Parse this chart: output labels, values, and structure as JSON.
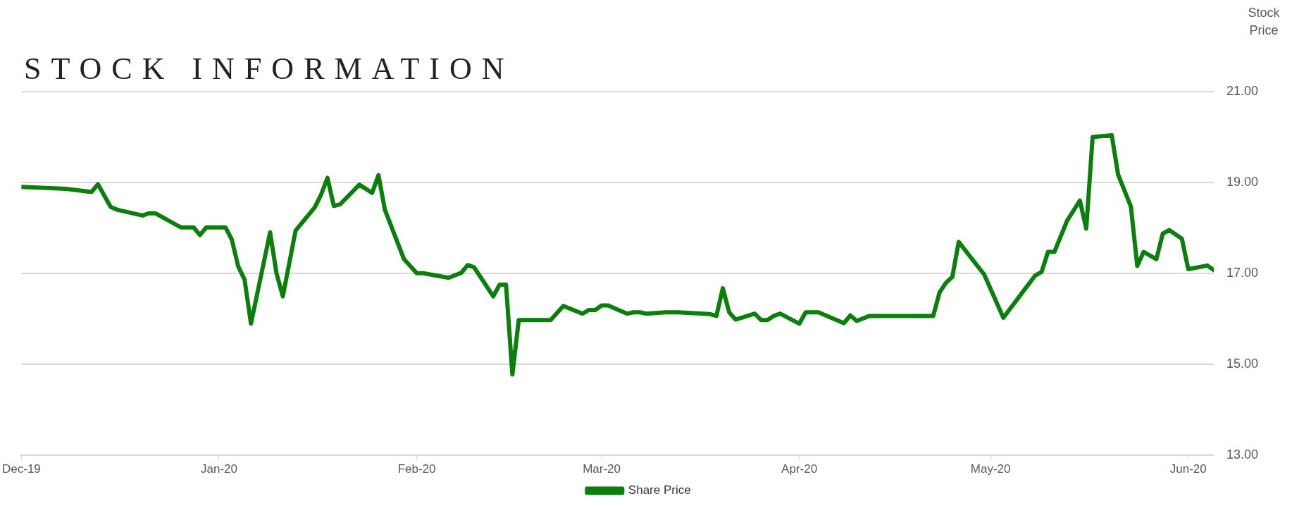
{
  "chart_data": {
    "type": "line",
    "title": "STOCK INFORMATION",
    "ylabel": "Stock Price",
    "x": [
      "2019-12-01",
      "2019-12-08",
      "2019-12-12",
      "2019-12-13",
      "2019-12-15",
      "2019-12-16",
      "2019-12-20",
      "2019-12-21",
      "2019-12-22",
      "2019-12-26",
      "2019-12-28",
      "2019-12-29",
      "2019-12-30",
      "2020-01-02",
      "2020-01-03",
      "2020-01-04",
      "2020-01-05",
      "2020-01-06",
      "2020-01-09",
      "2020-01-10",
      "2020-01-11",
      "2020-01-13",
      "2020-01-16",
      "2020-01-17",
      "2020-01-18",
      "2020-01-19",
      "2020-01-20",
      "2020-01-23",
      "2020-01-25",
      "2020-01-26",
      "2020-01-27",
      "2020-01-30",
      "2020-02-01",
      "2020-02-02",
      "2020-02-06",
      "2020-02-08",
      "2020-02-09",
      "2020-02-10",
      "2020-02-13",
      "2020-02-14",
      "2020-02-15",
      "2020-02-16",
      "2020-02-17",
      "2020-02-22",
      "2020-02-24",
      "2020-02-27",
      "2020-02-28",
      "2020-02-29",
      "2020-03-01",
      "2020-03-02",
      "2020-03-05",
      "2020-03-06",
      "2020-03-07",
      "2020-03-08",
      "2020-03-11",
      "2020-03-13",
      "2020-03-18",
      "2020-03-19",
      "2020-03-20",
      "2020-03-21",
      "2020-03-22",
      "2020-03-25",
      "2020-03-26",
      "2020-03-27",
      "2020-03-28",
      "2020-03-29",
      "2020-04-01",
      "2020-04-02",
      "2020-04-04",
      "2020-04-08",
      "2020-04-09",
      "2020-04-10",
      "2020-04-12",
      "2020-04-22",
      "2020-04-23",
      "2020-04-24",
      "2020-04-25",
      "2020-04-26",
      "2020-04-30",
      "2020-05-03",
      "2020-05-06",
      "2020-05-08",
      "2020-05-09",
      "2020-05-10",
      "2020-05-11",
      "2020-05-13",
      "2020-05-15",
      "2020-05-16",
      "2020-05-17",
      "2020-05-20",
      "2020-05-21",
      "2020-05-23",
      "2020-05-24",
      "2020-05-25",
      "2020-05-27",
      "2020-05-28",
      "2020-05-29",
      "2020-05-31",
      "2020-06-01",
      "2020-06-04",
      "2020-06-05"
    ],
    "series": [
      {
        "name": "Share Price",
        "color": "#0b7f0b",
        "values": [
          18.9,
          18.86,
          18.79,
          18.96,
          18.46,
          18.4,
          18.27,
          18.32,
          18.32,
          18.01,
          18.01,
          17.84,
          18.01,
          18.01,
          17.74,
          17.15,
          16.86,
          15.89,
          17.9,
          17.0,
          16.49,
          17.94,
          18.45,
          18.73,
          19.1,
          18.48,
          18.52,
          18.95,
          18.77,
          19.16,
          18.4,
          17.31,
          17.0,
          17.0,
          16.9,
          17.01,
          17.18,
          17.13,
          16.49,
          16.75,
          16.75,
          14.77,
          15.97,
          15.97,
          16.28,
          16.11,
          16.19,
          16.19,
          16.29,
          16.29,
          16.11,
          16.14,
          16.14,
          16.11,
          16.14,
          16.14,
          16.1,
          16.06,
          16.67,
          16.14,
          15.98,
          16.11,
          15.97,
          15.97,
          16.06,
          16.11,
          15.89,
          16.14,
          16.14,
          15.9,
          16.07,
          15.95,
          16.06,
          16.06,
          16.58,
          16.79,
          16.92,
          17.69,
          16.97,
          16.02,
          16.58,
          16.95,
          17.03,
          17.47,
          17.47,
          18.16,
          18.6,
          17.98,
          20.0,
          20.04,
          19.17,
          18.47,
          17.16,
          17.47,
          17.31,
          17.87,
          17.95,
          17.76,
          17.09,
          17.17,
          17.07
        ]
      }
    ],
    "xlim": [
      "2019-12-01",
      "2020-06-05"
    ],
    "xticks": [
      {
        "value": "2019-12-01",
        "label": "Dec-19"
      },
      {
        "value": "2020-01-01",
        "label": "Jan-20"
      },
      {
        "value": "2020-02-01",
        "label": "Feb-20"
      },
      {
        "value": "2020-03-01",
        "label": "Mar-20"
      },
      {
        "value": "2020-04-01",
        "label": "Apr-20"
      },
      {
        "value": "2020-05-01",
        "label": "May-20"
      },
      {
        "value": "2020-06-01",
        "label": "Jun-20"
      }
    ],
    "ylim": [
      13,
      21
    ],
    "yticks": [
      {
        "value": 13,
        "label": "13.00"
      },
      {
        "value": 15,
        "label": "15.00"
      },
      {
        "value": 17,
        "label": "17.00"
      },
      {
        "value": 19,
        "label": "19.00"
      },
      {
        "value": 21,
        "label": "21.00"
      }
    ],
    "grid": "y",
    "legend": "bottom",
    "marker": "none",
    "line_style": "solid"
  }
}
